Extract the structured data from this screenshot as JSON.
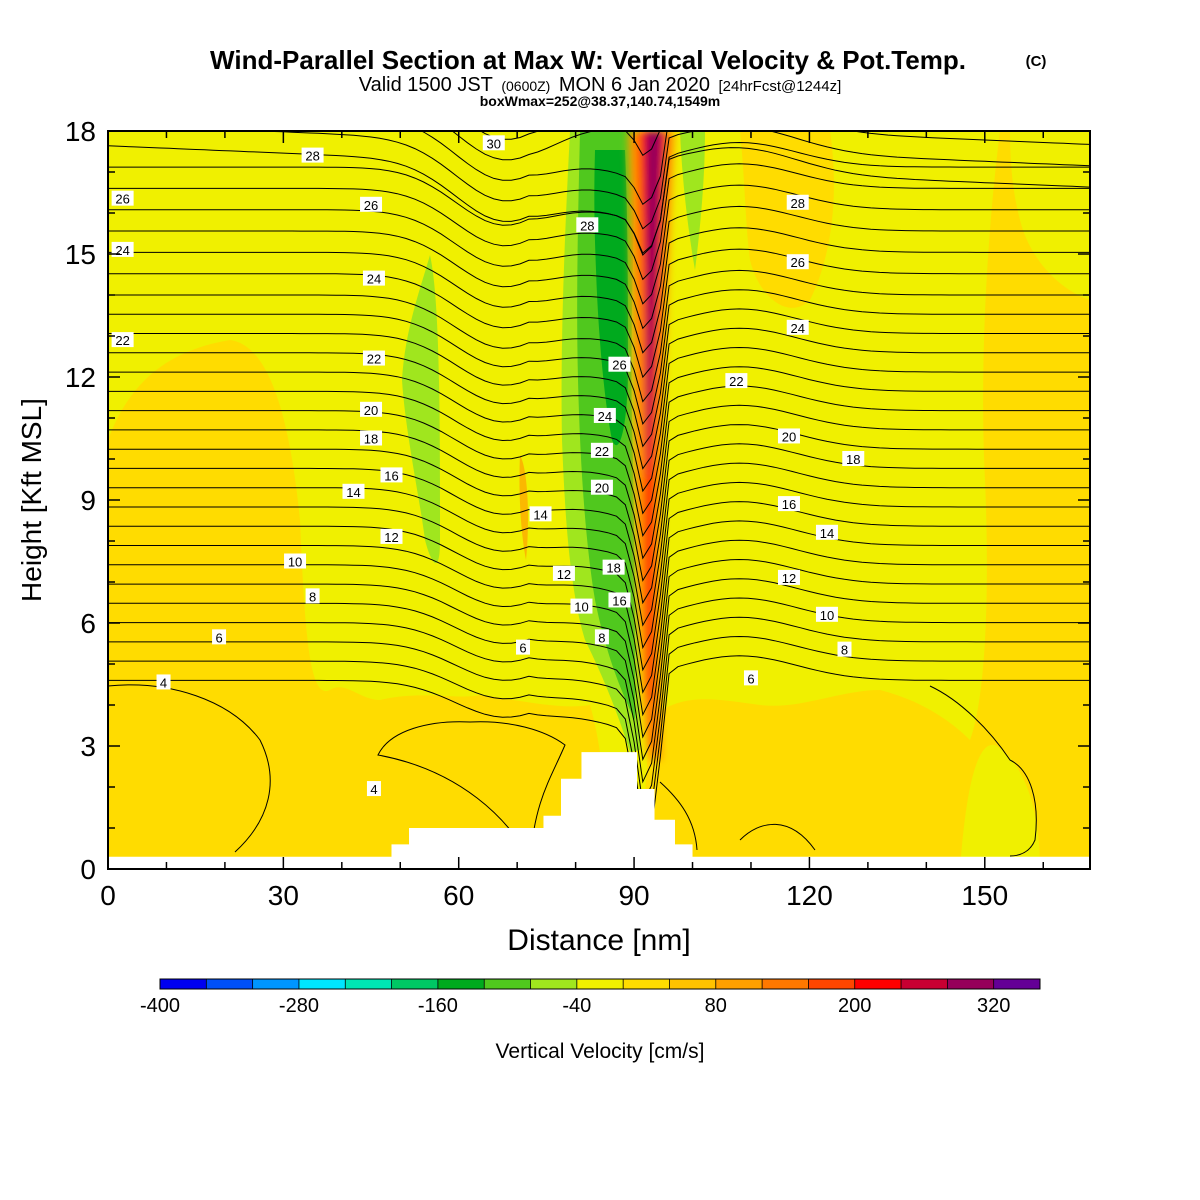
{
  "header": {
    "title": "Wind-Parallel Section at Max W: Vertical Velocity & Pot.Temp.",
    "copyright": "(C)",
    "valid_prefix": "Valid 1500 JST",
    "valid_utc": "(0600Z)",
    "valid_date": "MON 6 Jan 2020",
    "forecast": "[24hrFcst@1244z]",
    "box_info": "boxWmax=252@38.37,140.74,1549m"
  },
  "chart_data": {
    "type": "heatmap",
    "xlabel": "Distance [nm]",
    "ylabel": "Height [Kft MSL]",
    "xlim": [
      0,
      168
    ],
    "ylim": [
      0,
      18
    ],
    "x_ticks": [
      0,
      30,
      60,
      90,
      120,
      150
    ],
    "y_ticks": [
      0,
      3,
      6,
      9,
      12,
      15,
      18
    ],
    "colorbar": {
      "label": "Vertical Velocity [cm/s]",
      "tick_labels": [
        "-400",
        "-280",
        "-160",
        "-40",
        "80",
        "200",
        "320"
      ],
      "tick_values": [
        -400,
        -280,
        -160,
        -40,
        80,
        200,
        320
      ],
      "range": [
        -400,
        360
      ],
      "colors": [
        "#0000f0",
        "#0050f8",
        "#0096ff",
        "#00e6ff",
        "#00e6b4",
        "#00c864",
        "#00aa1e",
        "#50c81e",
        "#a0e61e",
        "#f0f000",
        "#ffdc00",
        "#ffc300",
        "#ffa000",
        "#ff7800",
        "#ff4600",
        "#ff0000",
        "#c80032",
        "#96005a",
        "#640096"
      ]
    },
    "theta_contour_labels": [
      {
        "value": "4",
        "x": 9.5,
        "y": 4.55
      },
      {
        "value": "4",
        "x": 45.5,
        "y": 1.95
      },
      {
        "value": "6",
        "x": 19,
        "y": 5.65
      },
      {
        "value": "6",
        "x": 71,
        "y": 5.4
      },
      {
        "value": "6",
        "x": 110,
        "y": 4.65
      },
      {
        "value": "8",
        "x": 35,
        "y": 6.65
      },
      {
        "value": "8",
        "x": 84.5,
        "y": 5.65
      },
      {
        "value": "8",
        "x": 126,
        "y": 5.35
      },
      {
        "value": "10",
        "x": 32,
        "y": 7.5
      },
      {
        "value": "10",
        "x": 81,
        "y": 6.4
      },
      {
        "value": "10",
        "x": 123,
        "y": 6.2
      },
      {
        "value": "12",
        "x": 48.5,
        "y": 8.1
      },
      {
        "value": "12",
        "x": 78,
        "y": 7.2
      },
      {
        "value": "12",
        "x": 116.5,
        "y": 7.1
      },
      {
        "value": "14",
        "x": 42,
        "y": 9.2
      },
      {
        "value": "14",
        "x": 74,
        "y": 8.65
      },
      {
        "value": "14",
        "x": 123,
        "y": 8.2
      },
      {
        "value": "16",
        "x": 48.5,
        "y": 9.6
      },
      {
        "value": "16",
        "x": 87.5,
        "y": 6.55
      },
      {
        "value": "16",
        "x": 116.5,
        "y": 8.9
      },
      {
        "value": "18",
        "x": 45,
        "y": 10.5
      },
      {
        "value": "18",
        "x": 86.5,
        "y": 7.35
      },
      {
        "value": "18",
        "x": 127.5,
        "y": 10.0
      },
      {
        "value": "20",
        "x": 45,
        "y": 11.2
      },
      {
        "value": "20",
        "x": 84.5,
        "y": 9.3
      },
      {
        "value": "20",
        "x": 116.5,
        "y": 10.55
      },
      {
        "value": "22",
        "x": 2.5,
        "y": 12.9
      },
      {
        "value": "22",
        "x": 45.5,
        "y": 12.45
      },
      {
        "value": "22",
        "x": 84.5,
        "y": 10.2
      },
      {
        "value": "22",
        "x": 107.5,
        "y": 11.9
      },
      {
        "value": "24",
        "x": 2.5,
        "y": 15.1
      },
      {
        "value": "24",
        "x": 45.5,
        "y": 14.4
      },
      {
        "value": "24",
        "x": 85,
        "y": 11.05
      },
      {
        "value": "24",
        "x": 118,
        "y": 13.2
      },
      {
        "value": "26",
        "x": 2.5,
        "y": 16.35
      },
      {
        "value": "26",
        "x": 45,
        "y": 16.2
      },
      {
        "value": "26",
        "x": 87.5,
        "y": 12.3
      },
      {
        "value": "26",
        "x": 118,
        "y": 14.8
      },
      {
        "value": "28",
        "x": 35,
        "y": 17.4
      },
      {
        "value": "28",
        "x": 82,
        "y": 15.7
      },
      {
        "value": "28",
        "x": 118,
        "y": 16.25
      },
      {
        "value": "30",
        "x": 66,
        "y": 17.7
      }
    ],
    "terrain": [
      [
        0,
        0.3
      ],
      [
        48.5,
        0.3
      ],
      [
        48.5,
        0.6
      ],
      [
        51.5,
        0.6
      ],
      [
        51.5,
        1.0
      ],
      [
        74.5,
        1.0
      ],
      [
        74.5,
        1.3
      ],
      [
        77.5,
        1.3
      ],
      [
        77.5,
        2.2
      ],
      [
        81,
        2.2
      ],
      [
        81,
        2.85
      ],
      [
        90.5,
        2.85
      ],
      [
        90.5,
        1.95
      ],
      [
        93.5,
        1.95
      ],
      [
        93.5,
        1.2
      ],
      [
        97,
        1.2
      ],
      [
        97,
        0.6
      ],
      [
        100,
        0.6
      ],
      [
        100,
        0.3
      ],
      [
        168,
        0.3
      ]
    ]
  }
}
